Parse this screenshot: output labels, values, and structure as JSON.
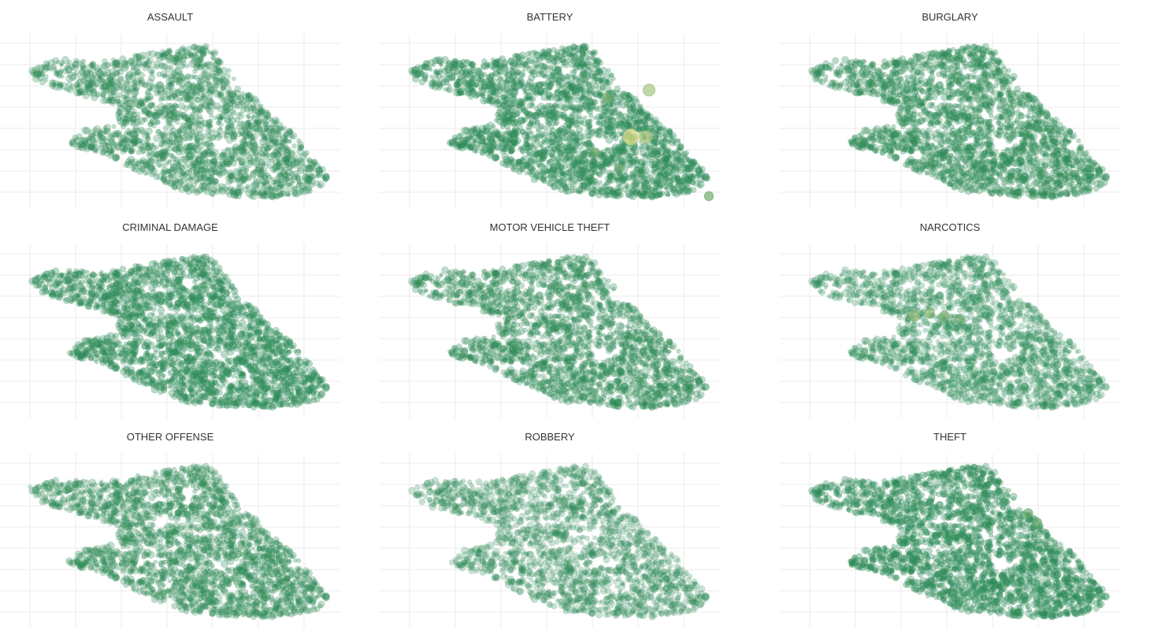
{
  "colors": {
    "point_low": "#2e8b57",
    "point_high": "#f0e68c",
    "grid": "#ebebeb",
    "background": "#ffffff"
  },
  "chart_data": {
    "type": "scatter",
    "facet_by": "crime type",
    "grid": true,
    "legend": "none",
    "xlabel": "",
    "ylabel": "",
    "x_range": [
      0,
      1
    ],
    "y_range": [
      0,
      1
    ],
    "color_scale": [
      "#2e8b57",
      "#f0e68c"
    ],
    "facets": [
      {
        "title": "ASSAULT",
        "density": 0.75,
        "outliers": [],
        "highlights": []
      },
      {
        "title": "BATTERY",
        "density": 0.95,
        "outliers": [
          [
            0.08,
            0.86
          ],
          [
            0.15,
            0.88
          ],
          [
            0.16,
            0.84
          ]
        ],
        "highlights": [
          [
            0.8,
            0.7,
            0.6
          ],
          [
            0.74,
            0.4,
            1.0
          ],
          [
            0.79,
            0.4,
            0.7
          ],
          [
            0.66,
            0.65,
            0.4
          ],
          [
            0.62,
            0.3,
            0.3
          ],
          [
            0.7,
            0.2,
            0.3
          ],
          [
            1.0,
            0.02,
            0.3
          ]
        ]
      },
      {
        "title": "BURGLARY",
        "density": 0.9,
        "outliers": [],
        "highlights": []
      },
      {
        "title": "CRIMINAL DAMAGE",
        "density": 0.97,
        "outliers": [],
        "highlights": []
      },
      {
        "title": "MOTOR VEHICLE THEFT",
        "density": 0.8,
        "outliers": [
          [
            0.09,
            0.85
          ],
          [
            0.16,
            0.87
          ],
          [
            0.17,
            0.82
          ]
        ],
        "highlights": []
      },
      {
        "title": "NARCOTICS",
        "density": 0.7,
        "outliers": [
          [
            0.08,
            0.8
          ],
          [
            0.14,
            0.84
          ]
        ],
        "highlights": [
          [
            0.35,
            0.6,
            0.5
          ],
          [
            0.4,
            0.62,
            0.4
          ],
          [
            0.45,
            0.6,
            0.4
          ],
          [
            0.5,
            0.58,
            0.3
          ]
        ]
      },
      {
        "title": "OTHER OFFENSE",
        "density": 0.82,
        "outliers": [
          [
            0.0,
            0.85
          ]
        ],
        "highlights": []
      },
      {
        "title": "ROBBERY",
        "density": 0.62,
        "outliers": [],
        "highlights": []
      },
      {
        "title": "THEFT",
        "density": 0.97,
        "outliers": [
          [
            0.08,
            0.87
          ],
          [
            0.09,
            0.86
          ]
        ],
        "highlights": [
          [
            0.73,
            0.68,
            0.3
          ],
          [
            0.76,
            0.62,
            0.3
          ]
        ]
      }
    ]
  }
}
